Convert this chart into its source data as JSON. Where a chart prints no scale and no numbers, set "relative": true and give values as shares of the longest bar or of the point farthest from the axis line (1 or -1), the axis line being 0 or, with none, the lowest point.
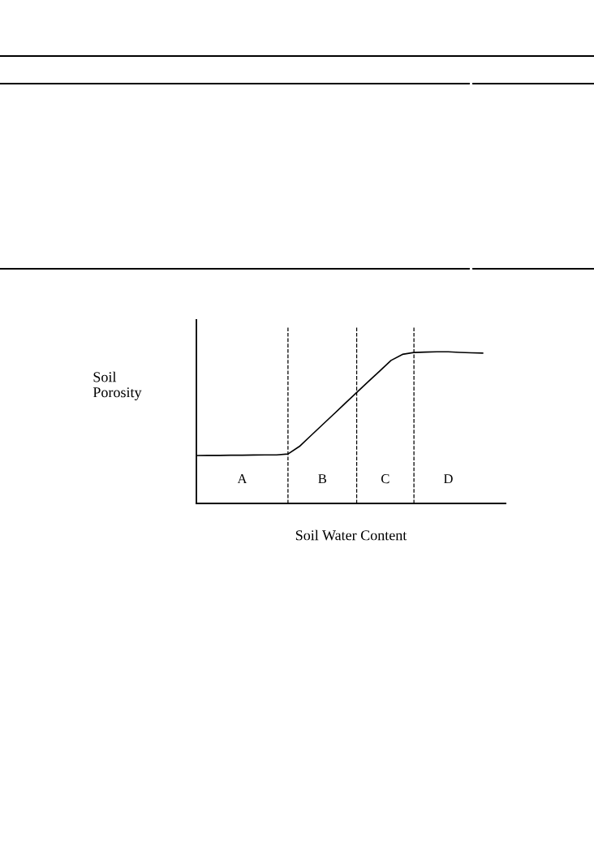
{
  "chart_data": {
    "type": "line",
    "relative": true,
    "xlabel": "Soil Water Content",
    "ylabel": "Soil\nPorosity",
    "categories": [
      null,
      null,
      null,
      null,
      null,
      null,
      null,
      null,
      null,
      null,
      null,
      null,
      null,
      null,
      null,
      null,
      null,
      null,
      null,
      null,
      null,
      null,
      null,
      null,
      null,
      null
    ],
    "series": [
      {
        "color": "#000000",
        "values": [
          0.316,
          0.317,
          0.317,
          0.318,
          0.318,
          0.319,
          0.32,
          0.32,
          0.326,
          0.376,
          0.447,
          0.518,
          0.589,
          0.66,
          0.731,
          0.802,
          0.872,
          0.943,
          0.983,
          0.995,
          0.998,
          1.0,
          1.0,
          0.996,
          0.993,
          0.991
        ]
      }
    ],
    "grid": "x",
    "annotations": [
      "A",
      "B",
      "C",
      "D"
    ],
    "marker": "none",
    "line_style": "solid"
  }
}
